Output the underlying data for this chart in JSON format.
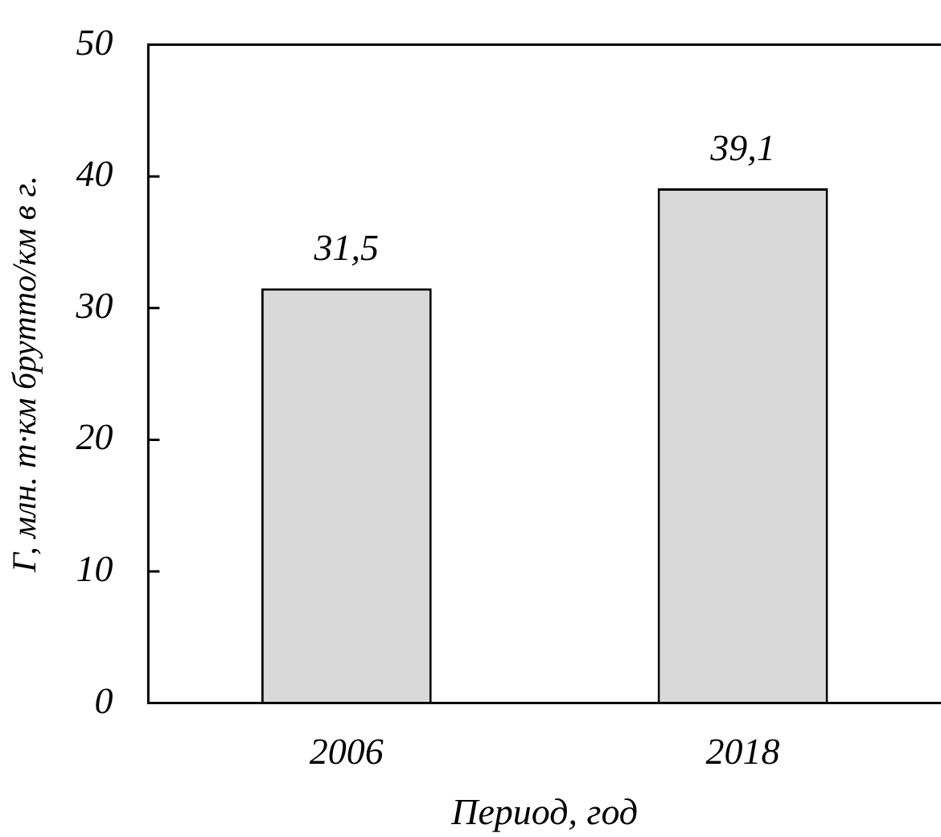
{
  "chart_data": {
    "type": "bar",
    "xlabel": "Период, год",
    "ylabel": "Г, млн. т·км брутто/км в г.",
    "categories": [
      "2006",
      "2018"
    ],
    "values": [
      31.5,
      39.1
    ],
    "color": "#d9d9d9",
    "value_labels": [
      "31,5",
      "39,1"
    ],
    "ylim": [
      0,
      50
    ],
    "yticks": [
      0,
      10,
      20,
      30,
      40,
      50
    ]
  }
}
